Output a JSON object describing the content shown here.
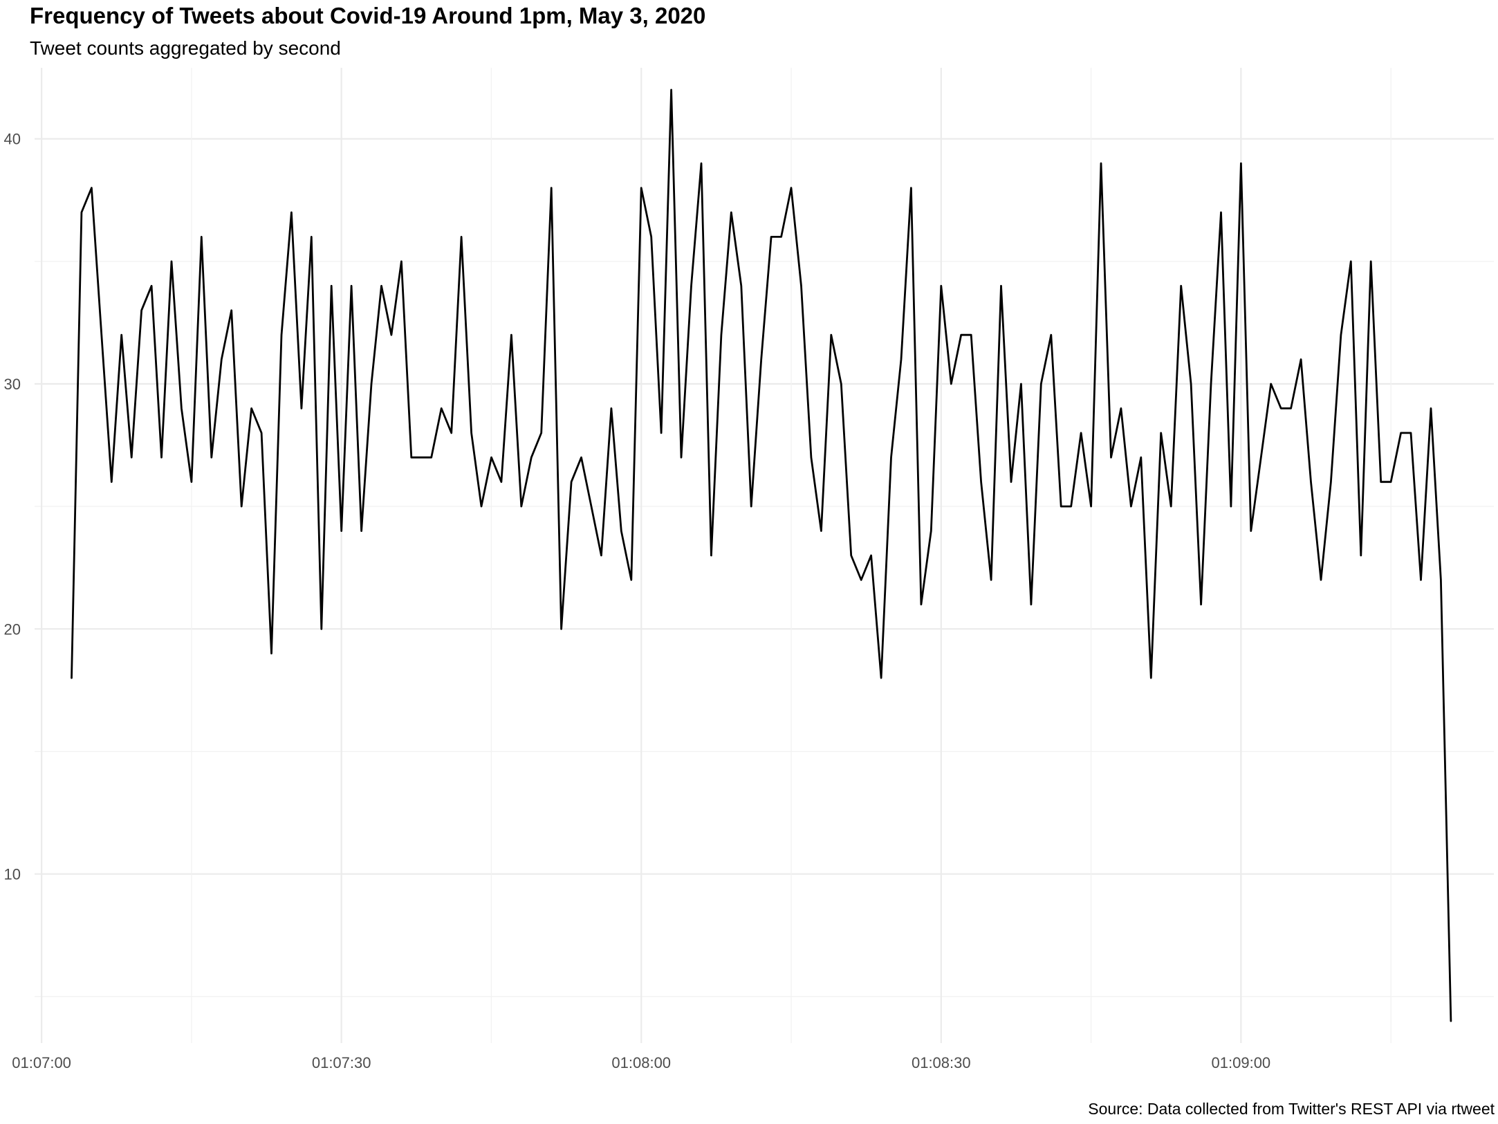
{
  "chart_data": {
    "type": "line",
    "title": "Frequency of Tweets about Covid-19 Around 1pm, May 3, 2020",
    "subtitle": "Tweet counts aggregated by second",
    "caption": "Source: Data collected from Twitter's REST API via rtweet",
    "xlabel": "",
    "ylabel": "",
    "x_ticks": [
      "01:07:00",
      "01:07:30",
      "01:08:00",
      "01:08:30",
      "01:09:00"
    ],
    "y_ticks": [
      10,
      20,
      30,
      40
    ],
    "grid": true,
    "x": [
      "01:07:03",
      "01:07:04",
      "01:07:05",
      "01:07:06",
      "01:07:07",
      "01:07:08",
      "01:07:09",
      "01:07:10",
      "01:07:11",
      "01:07:12",
      "01:07:13",
      "01:07:14",
      "01:07:15",
      "01:07:16",
      "01:07:17",
      "01:07:18",
      "01:07:19",
      "01:07:20",
      "01:07:21",
      "01:07:22",
      "01:07:23",
      "01:07:24",
      "01:07:25",
      "01:07:26",
      "01:07:27",
      "01:07:28",
      "01:07:29",
      "01:07:30",
      "01:07:31",
      "01:07:32",
      "01:07:33",
      "01:07:34",
      "01:07:35",
      "01:07:36",
      "01:07:37",
      "01:07:38",
      "01:07:39",
      "01:07:40",
      "01:07:41",
      "01:07:42",
      "01:07:43",
      "01:07:44",
      "01:07:45",
      "01:07:46",
      "01:07:47",
      "01:07:48",
      "01:07:49",
      "01:07:50",
      "01:07:51",
      "01:07:52",
      "01:07:53",
      "01:07:54",
      "01:07:55",
      "01:07:56",
      "01:07:57",
      "01:07:58",
      "01:07:59",
      "01:08:00",
      "01:08:01",
      "01:08:02",
      "01:08:03",
      "01:08:04",
      "01:08:05",
      "01:08:06",
      "01:08:07",
      "01:08:08",
      "01:08:09",
      "01:08:10",
      "01:08:11",
      "01:08:12",
      "01:08:13",
      "01:08:14",
      "01:08:15",
      "01:08:16",
      "01:08:17",
      "01:08:18",
      "01:08:19",
      "01:08:20",
      "01:08:21",
      "01:08:22",
      "01:08:23",
      "01:08:24",
      "01:08:25",
      "01:08:26",
      "01:08:27",
      "01:08:28",
      "01:08:29",
      "01:08:30",
      "01:08:31",
      "01:08:32",
      "01:08:33",
      "01:08:34",
      "01:08:35",
      "01:08:36",
      "01:08:37",
      "01:08:38",
      "01:08:39",
      "01:08:40",
      "01:08:41",
      "01:08:42",
      "01:08:43",
      "01:08:44",
      "01:08:45",
      "01:08:46",
      "01:08:47",
      "01:08:48",
      "01:08:49",
      "01:08:50",
      "01:08:51",
      "01:08:52",
      "01:08:53",
      "01:08:54",
      "01:08:55",
      "01:08:56",
      "01:08:57",
      "01:08:58",
      "01:08:59",
      "01:09:00",
      "01:09:01",
      "01:09:02",
      "01:09:03",
      "01:09:04",
      "01:09:05",
      "01:09:06",
      "01:09:07",
      "01:09:08",
      "01:09:09",
      "01:09:10",
      "01:09:11",
      "01:09:12",
      "01:09:13",
      "01:09:14",
      "01:09:15",
      "01:09:16",
      "01:09:17",
      "01:09:18",
      "01:09:19",
      "01:09:20",
      "01:09:21"
    ],
    "values": [
      18,
      37,
      38,
      32,
      26,
      32,
      27,
      33,
      34,
      27,
      35,
      29,
      26,
      36,
      27,
      31,
      33,
      25,
      29,
      28,
      19,
      32,
      37,
      29,
      36,
      20,
      34,
      24,
      34,
      24,
      30,
      34,
      32,
      35,
      27,
      27,
      27,
      29,
      28,
      36,
      28,
      25,
      27,
      26,
      32,
      25,
      27,
      28,
      38,
      20,
      26,
      27,
      25,
      23,
      29,
      24,
      22,
      38,
      36,
      28,
      42,
      27,
      34,
      39,
      23,
      32,
      37,
      34,
      25,
      31,
      36,
      36,
      38,
      34,
      27,
      24,
      32,
      30,
      23,
      22,
      23,
      18,
      27,
      31,
      38,
      21,
      24,
      34,
      30,
      32,
      32,
      26,
      22,
      34,
      26,
      30,
      21,
      30,
      32,
      25,
      25,
      28,
      25,
      39,
      27,
      29,
      25,
      27,
      18,
      28,
      25,
      34,
      30,
      21,
      30,
      37,
      25,
      39,
      24,
      27,
      30,
      29,
      29,
      31,
      26,
      22,
      26,
      32,
      35,
      23,
      35,
      26,
      26,
      28,
      28,
      22,
      29,
      22,
      4
    ],
    "ylim": [
      3.1,
      42.9
    ],
    "xlim": [
      "01:06:59.3",
      "01:09:25.3"
    ]
  }
}
